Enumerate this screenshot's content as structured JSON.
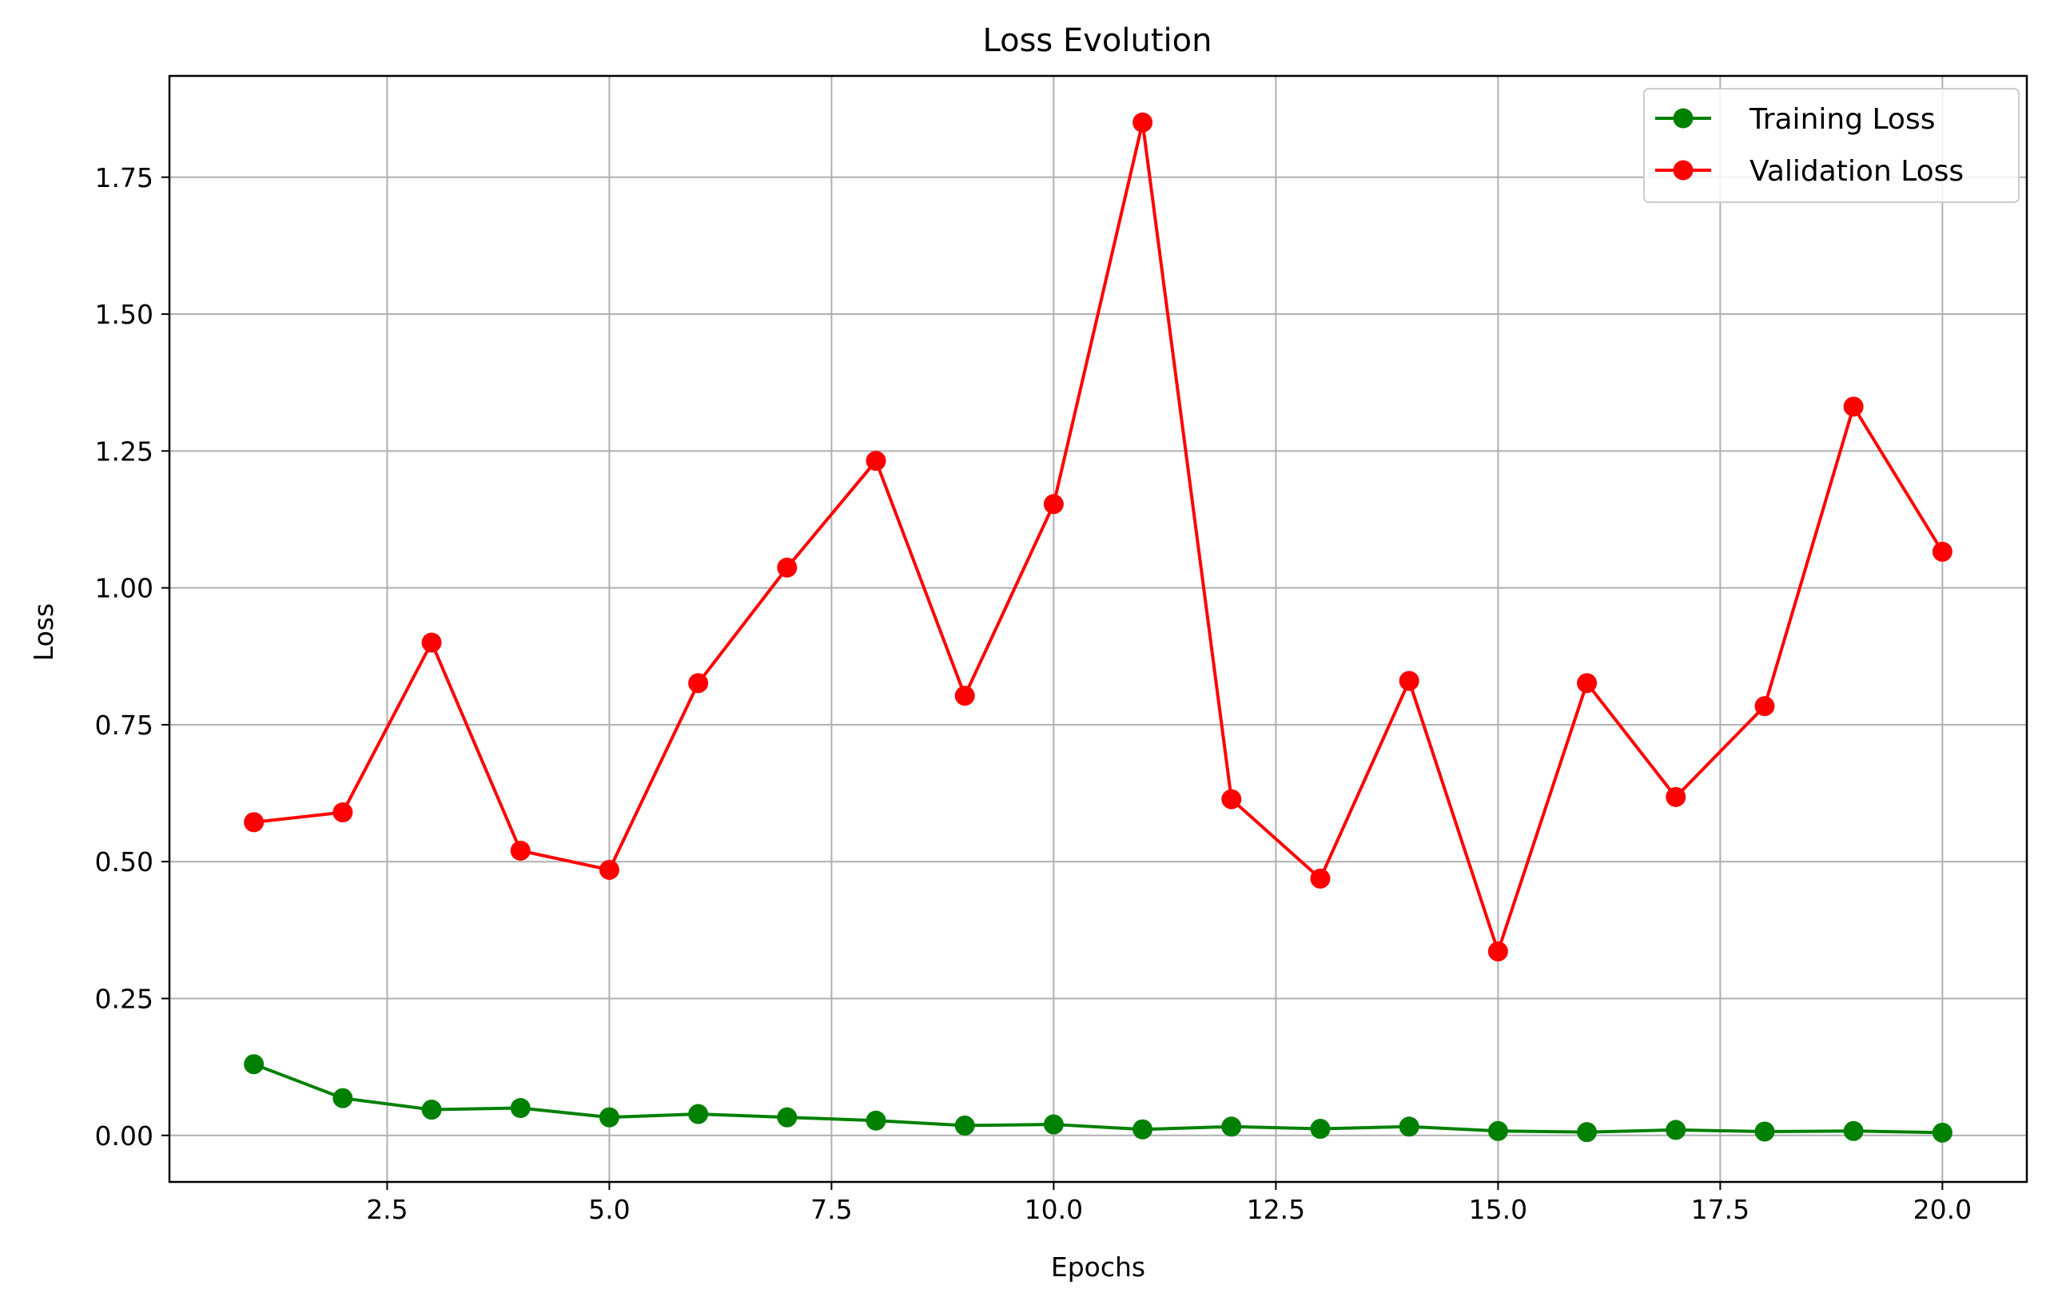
{
  "chart_data": {
    "type": "line",
    "title": "Loss Evolution",
    "xlabel": "Epochs",
    "ylabel": "Loss",
    "xlim": [
      0.05,
      20.95
    ],
    "ylim": [
      -0.085,
      1.935
    ],
    "x_ticks": [
      2.5,
      5.0,
      7.5,
      10.0,
      12.5,
      15.0,
      17.5,
      20.0
    ],
    "x_tick_labels": [
      "2.5",
      "5.0",
      "7.5",
      "10.0",
      "12.5",
      "15.0",
      "17.5",
      "20.0"
    ],
    "y_ticks": [
      0.0,
      0.25,
      0.5,
      0.75,
      1.0,
      1.25,
      1.5,
      1.75
    ],
    "y_tick_labels": [
      "0.00",
      "0.25",
      "0.50",
      "0.75",
      "1.00",
      "1.25",
      "1.50",
      "1.75"
    ],
    "grid": true,
    "legend_position": "top-right",
    "x": [
      1,
      2,
      3,
      4,
      5,
      6,
      7,
      8,
      9,
      10,
      11,
      12,
      13,
      14,
      15,
      16,
      17,
      18,
      19,
      20
    ],
    "series": [
      {
        "name": "Training Loss",
        "color": "#008000",
        "marker": "circle",
        "values": [
          0.13,
          0.068,
          0.047,
          0.05,
          0.033,
          0.039,
          0.033,
          0.027,
          0.018,
          0.02,
          0.011,
          0.016,
          0.012,
          0.016,
          0.008,
          0.006,
          0.01,
          0.007,
          0.008,
          0.005
        ]
      },
      {
        "name": "Validation Loss",
        "color": "#ff0000",
        "marker": "circle",
        "values": [
          0.572,
          0.59,
          0.9,
          0.52,
          0.485,
          0.826,
          1.037,
          1.232,
          0.803,
          1.153,
          1.85,
          0.614,
          0.469,
          0.83,
          0.336,
          0.826,
          0.618,
          0.784,
          1.331,
          1.066
        ]
      }
    ]
  }
}
